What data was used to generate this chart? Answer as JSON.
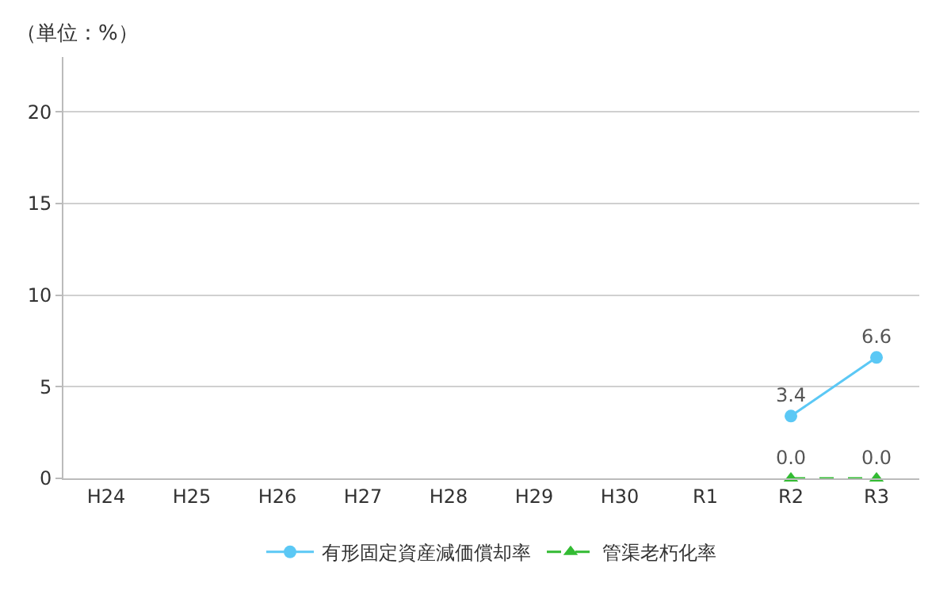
{
  "chart_data": {
    "type": "line",
    "annotations": [
      "（単位：%）"
    ],
    "categories": [
      "H24",
      "H25",
      "H26",
      "H27",
      "H28",
      "H29",
      "H30",
      "R1",
      "R2",
      "R3"
    ],
    "series": [
      {
        "name": "有形固定資産減価償却率",
        "color": "#5bc8f5",
        "marker": "circle",
        "line_style": "solid",
        "values": [
          null,
          null,
          null,
          null,
          null,
          null,
          null,
          null,
          3.4,
          6.6
        ],
        "value_labels": [
          null,
          null,
          null,
          null,
          null,
          null,
          null,
          null,
          "3.4",
          "6.6"
        ]
      },
      {
        "name": "管渠老朽化率",
        "color": "#33bb33",
        "marker": "triangle",
        "line_style": "dashed",
        "values": [
          null,
          null,
          null,
          null,
          null,
          null,
          null,
          null,
          0,
          0
        ],
        "value_labels": [
          null,
          null,
          null,
          null,
          null,
          null,
          null,
          null,
          "0.0",
          "0.0"
        ]
      }
    ],
    "ylim": [
      0,
      23
    ],
    "yticks": [
      0,
      5,
      10,
      15,
      20
    ],
    "grid": "y",
    "legend": "bottom"
  }
}
